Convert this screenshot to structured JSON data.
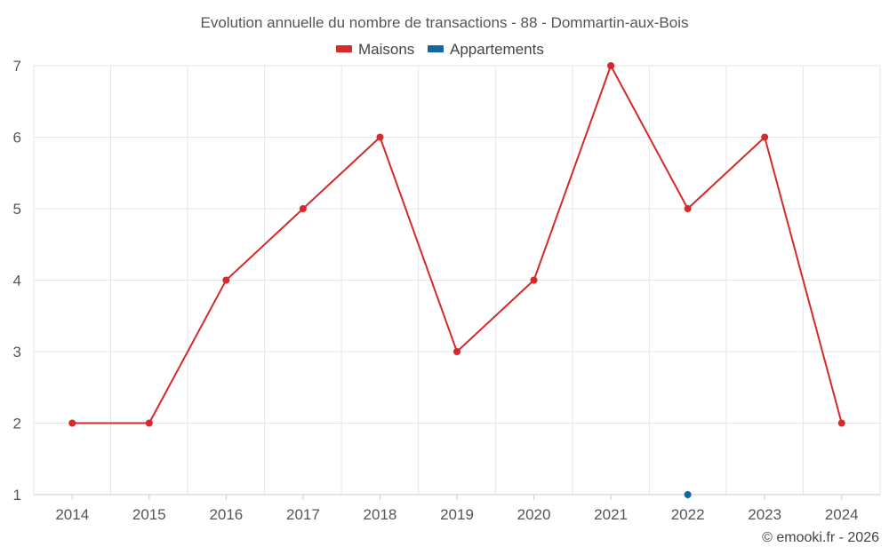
{
  "chart_data": {
    "type": "line",
    "title": "Evolution annuelle du nombre de transactions - 88 - Dommartin-aux-Bois",
    "xlabel": "",
    "ylabel": "",
    "categories": [
      "2014",
      "2015",
      "2016",
      "2017",
      "2018",
      "2019",
      "2020",
      "2021",
      "2022",
      "2023",
      "2024"
    ],
    "ylim": [
      1,
      7
    ],
    "yticks": [
      1,
      2,
      3,
      4,
      5,
      6,
      7
    ],
    "grid": true,
    "legend_position": "top-center",
    "series": [
      {
        "name": "Maisons",
        "color": "#d42a2a",
        "values": [
          2,
          2,
          4,
          5,
          6,
          3,
          4,
          7,
          5,
          6,
          2
        ]
      },
      {
        "name": "Appartements",
        "color": "#13679c",
        "values": [
          null,
          null,
          null,
          null,
          null,
          null,
          null,
          null,
          1,
          null,
          null
        ]
      }
    ]
  },
  "credit": "© emooki.fr - 2026"
}
